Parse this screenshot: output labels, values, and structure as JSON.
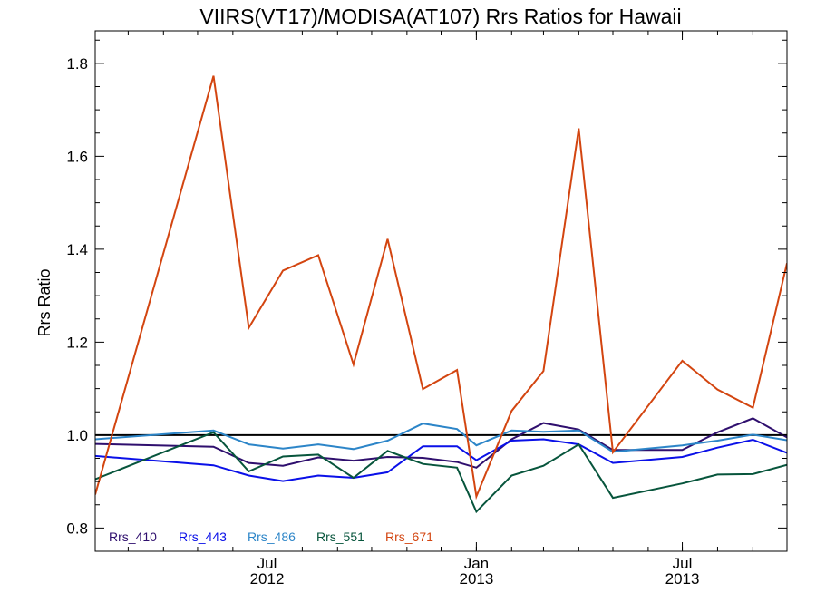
{
  "chart_data": {
    "type": "line",
    "title": "VIIRS(VT17)/MODISA(AT107)  Rrs Ratios for Hawaii",
    "xlabel": "",
    "ylabel": "Rrs Ratio",
    "xlim": [
      "2012-02-01",
      "2013-10-01"
    ],
    "ylim": [
      0.75,
      1.87
    ],
    "yticks": [
      "0.8",
      "1.0",
      "1.2",
      "1.4",
      "1.6",
      "1.8"
    ],
    "xticks": [
      {
        "date": "2012-07-01",
        "month": "Jul",
        "year": "2012"
      },
      {
        "date": "2013-01-01",
        "month": "Jan",
        "year": "2013"
      },
      {
        "date": "2013-07-01",
        "month": "Jul",
        "year": "2013"
      }
    ],
    "reference_line": 1.0,
    "grid": false,
    "legend_position": "bottom-left",
    "x": [
      "2012-02-01",
      "2012-05-15",
      "2012-06-15",
      "2012-07-15",
      "2012-08-15",
      "2012-09-15",
      "2012-10-15",
      "2012-11-15",
      "2012-12-15",
      "2013-01-01",
      "2013-02-01",
      "2013-03-01",
      "2013-04-01",
      "2013-05-01",
      "2013-07-01",
      "2013-08-01",
      "2013-09-01",
      "2013-10-01"
    ],
    "series": [
      {
        "name": "Rrs_410",
        "color": "#2f0f6e",
        "values": [
          0.981,
          0.975,
          0.94,
          0.934,
          0.952,
          0.945,
          0.953,
          0.951,
          0.942,
          0.93,
          0.991,
          1.026,
          1.012,
          0.968,
          0.968,
          1.006,
          1.036,
          0.995
        ]
      },
      {
        "name": "Rrs_443",
        "color": "#0a10e8",
        "values": [
          0.955,
          0.935,
          0.913,
          0.901,
          0.913,
          0.908,
          0.92,
          0.976,
          0.976,
          0.946,
          0.988,
          0.991,
          0.98,
          0.94,
          0.953,
          0.973,
          0.99,
          0.962
        ]
      },
      {
        "name": "Rrs_486",
        "color": "#2c85c8",
        "values": [
          0.991,
          1.01,
          0.98,
          0.971,
          0.98,
          0.97,
          0.988,
          1.025,
          1.013,
          0.978,
          1.01,
          1.007,
          1.01,
          0.964,
          0.978,
          0.988,
          1.001,
          0.989
        ]
      },
      {
        "name": "Rrs_551",
        "color": "#07553c",
        "values": [
          0.905,
          1.006,
          0.922,
          0.954,
          0.958,
          0.908,
          0.966,
          0.938,
          0.93,
          0.835,
          0.913,
          0.934,
          0.98,
          0.865,
          0.896,
          0.915,
          0.916,
          0.936
        ]
      },
      {
        "name": "Rrs_671",
        "color": "#d34510",
        "values": [
          0.872,
          1.773,
          1.231,
          1.354,
          1.387,
          1.152,
          1.422,
          1.099,
          1.14,
          0.868,
          1.052,
          1.138,
          1.66,
          0.963,
          1.16,
          1.098,
          1.059,
          1.37
        ]
      }
    ]
  }
}
